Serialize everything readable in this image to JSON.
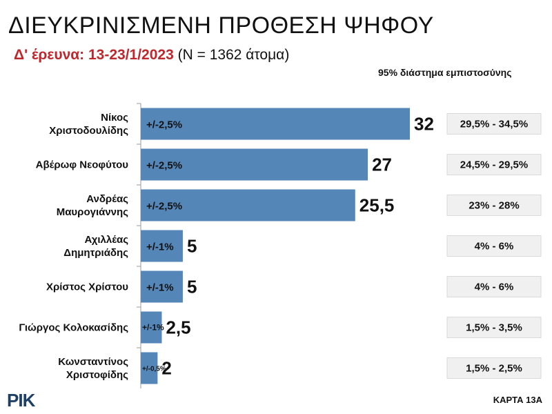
{
  "title": "ΔΙΕΥΚΡΙΝΙΣΜΕΝΗ ΠΡΟΘΕΣΗ ΨΗΦΟΥ",
  "subtitle_red": "Δ' έρευνα: 13-23/1/2023",
  "subtitle_rest": " (Ν = 1362 άτομα)",
  "ci_header": "95% διάστημα εμπιστοσύνης",
  "logo_text": "ΡΙΚ",
  "card_label": "ΚΑΡΤΑ 13Α",
  "colors": {
    "bar": "#5586b8",
    "ci_box": "#f0f0f0",
    "accent_red": "#c0272d"
  },
  "chart_data": {
    "type": "bar",
    "orientation": "horizontal",
    "title": "ΔΙΕΥΚΡΙΝΙΣΜΕΝΗ ΠΡΟΘΕΣΗ ΨΗΦΟΥ",
    "xlim": [
      0,
      32
    ],
    "categories": [
      [
        "Νίκος",
        "Χριστοδουλίδης"
      ],
      [
        "Αβέρωφ Νεοφύτου"
      ],
      [
        "Ανδρέας",
        "Μαυρογιάννης"
      ],
      [
        "Αχιλλέας",
        "Δημητριάδης"
      ],
      [
        "Χρίστος Χρίστου"
      ],
      [
        "Γιώργος Κολοκασίδης"
      ],
      [
        "Κωνσταντίνος",
        "Χριστοφίδης"
      ]
    ],
    "values": [
      32,
      27,
      25.5,
      5,
      5,
      2.5,
      2
    ],
    "value_labels": [
      "32",
      "27",
      "25,5",
      "5",
      "5",
      "2,5",
      "2"
    ],
    "margins": [
      "+/-2,5%",
      "+/-2,5%",
      "+/-2,5%",
      "+/-1%",
      "+/-1%",
      "+/-1%",
      "+/-0,5%"
    ],
    "confidence_intervals": [
      "29,5% - 34,5%",
      "24,5% - 29,5%",
      "23% - 28%",
      "4% - 6%",
      "4% - 6%",
      "1,5% - 3,5%",
      "1,5% - 2,5%"
    ]
  }
}
